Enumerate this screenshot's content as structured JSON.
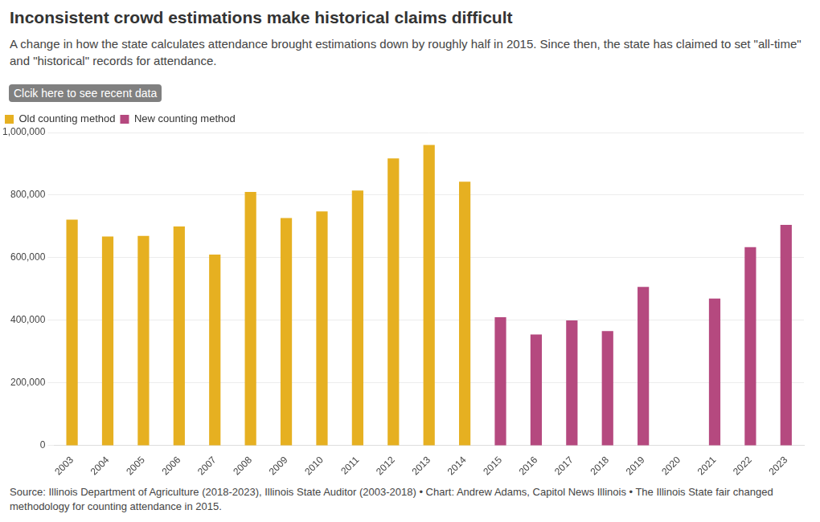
{
  "chart_data": {
    "type": "bar",
    "title": "Inconsistent crowd estimations make historical claims difficult",
    "subtitle": "A change in how the state calculates attendance brought estimations down by roughly half in 2015. Since then, the state has claimed to set \"all-time\" and \"historical\" records for attendance.",
    "button": "Clcik here to see recent data",
    "source": "Source: Illinois Department of Agriculture (2018-2023), Illinois State Auditor (2003-2018) • Chart: Andrew Adams, Capitol News Illinois • The Illinois State fair changed methodology for counting attendance in 2015.",
    "categories": [
      "2003",
      "2004",
      "2005",
      "2006",
      "2007",
      "2008",
      "2009",
      "2010",
      "2011",
      "2012",
      "2013",
      "2014",
      "2015",
      "2016",
      "2017",
      "2018",
      "2019",
      "2020",
      "2021",
      "2022",
      "2023"
    ],
    "series": [
      {
        "name": "Old counting method",
        "color": "#e6b021",
        "values": [
          722000,
          668000,
          670000,
          700000,
          610000,
          810000,
          727000,
          748000,
          815000,
          917000,
          960000,
          843000,
          null,
          null,
          null,
          null,
          null,
          null,
          null,
          null,
          null
        ]
      },
      {
        "name": "New counting method",
        "color": "#b5497f",
        "values": [
          null,
          null,
          null,
          null,
          null,
          null,
          null,
          null,
          null,
          null,
          null,
          null,
          410000,
          355000,
          400000,
          366000,
          507000,
          null,
          470000,
          634000,
          705000
        ]
      }
    ],
    "ylim": [
      0,
      1000000
    ],
    "yticks": [
      0,
      {
        "value": 200000,
        "label": "200,000"
      },
      {
        "value": 400000,
        "label": "400,000"
      },
      {
        "value": 600000,
        "label": "600,000"
      },
      {
        "value": 800000,
        "label": "800,000"
      },
      {
        "value": 1000000,
        "label": "1,000,000"
      }
    ],
    "grid": true,
    "legend": "top-left"
  }
}
